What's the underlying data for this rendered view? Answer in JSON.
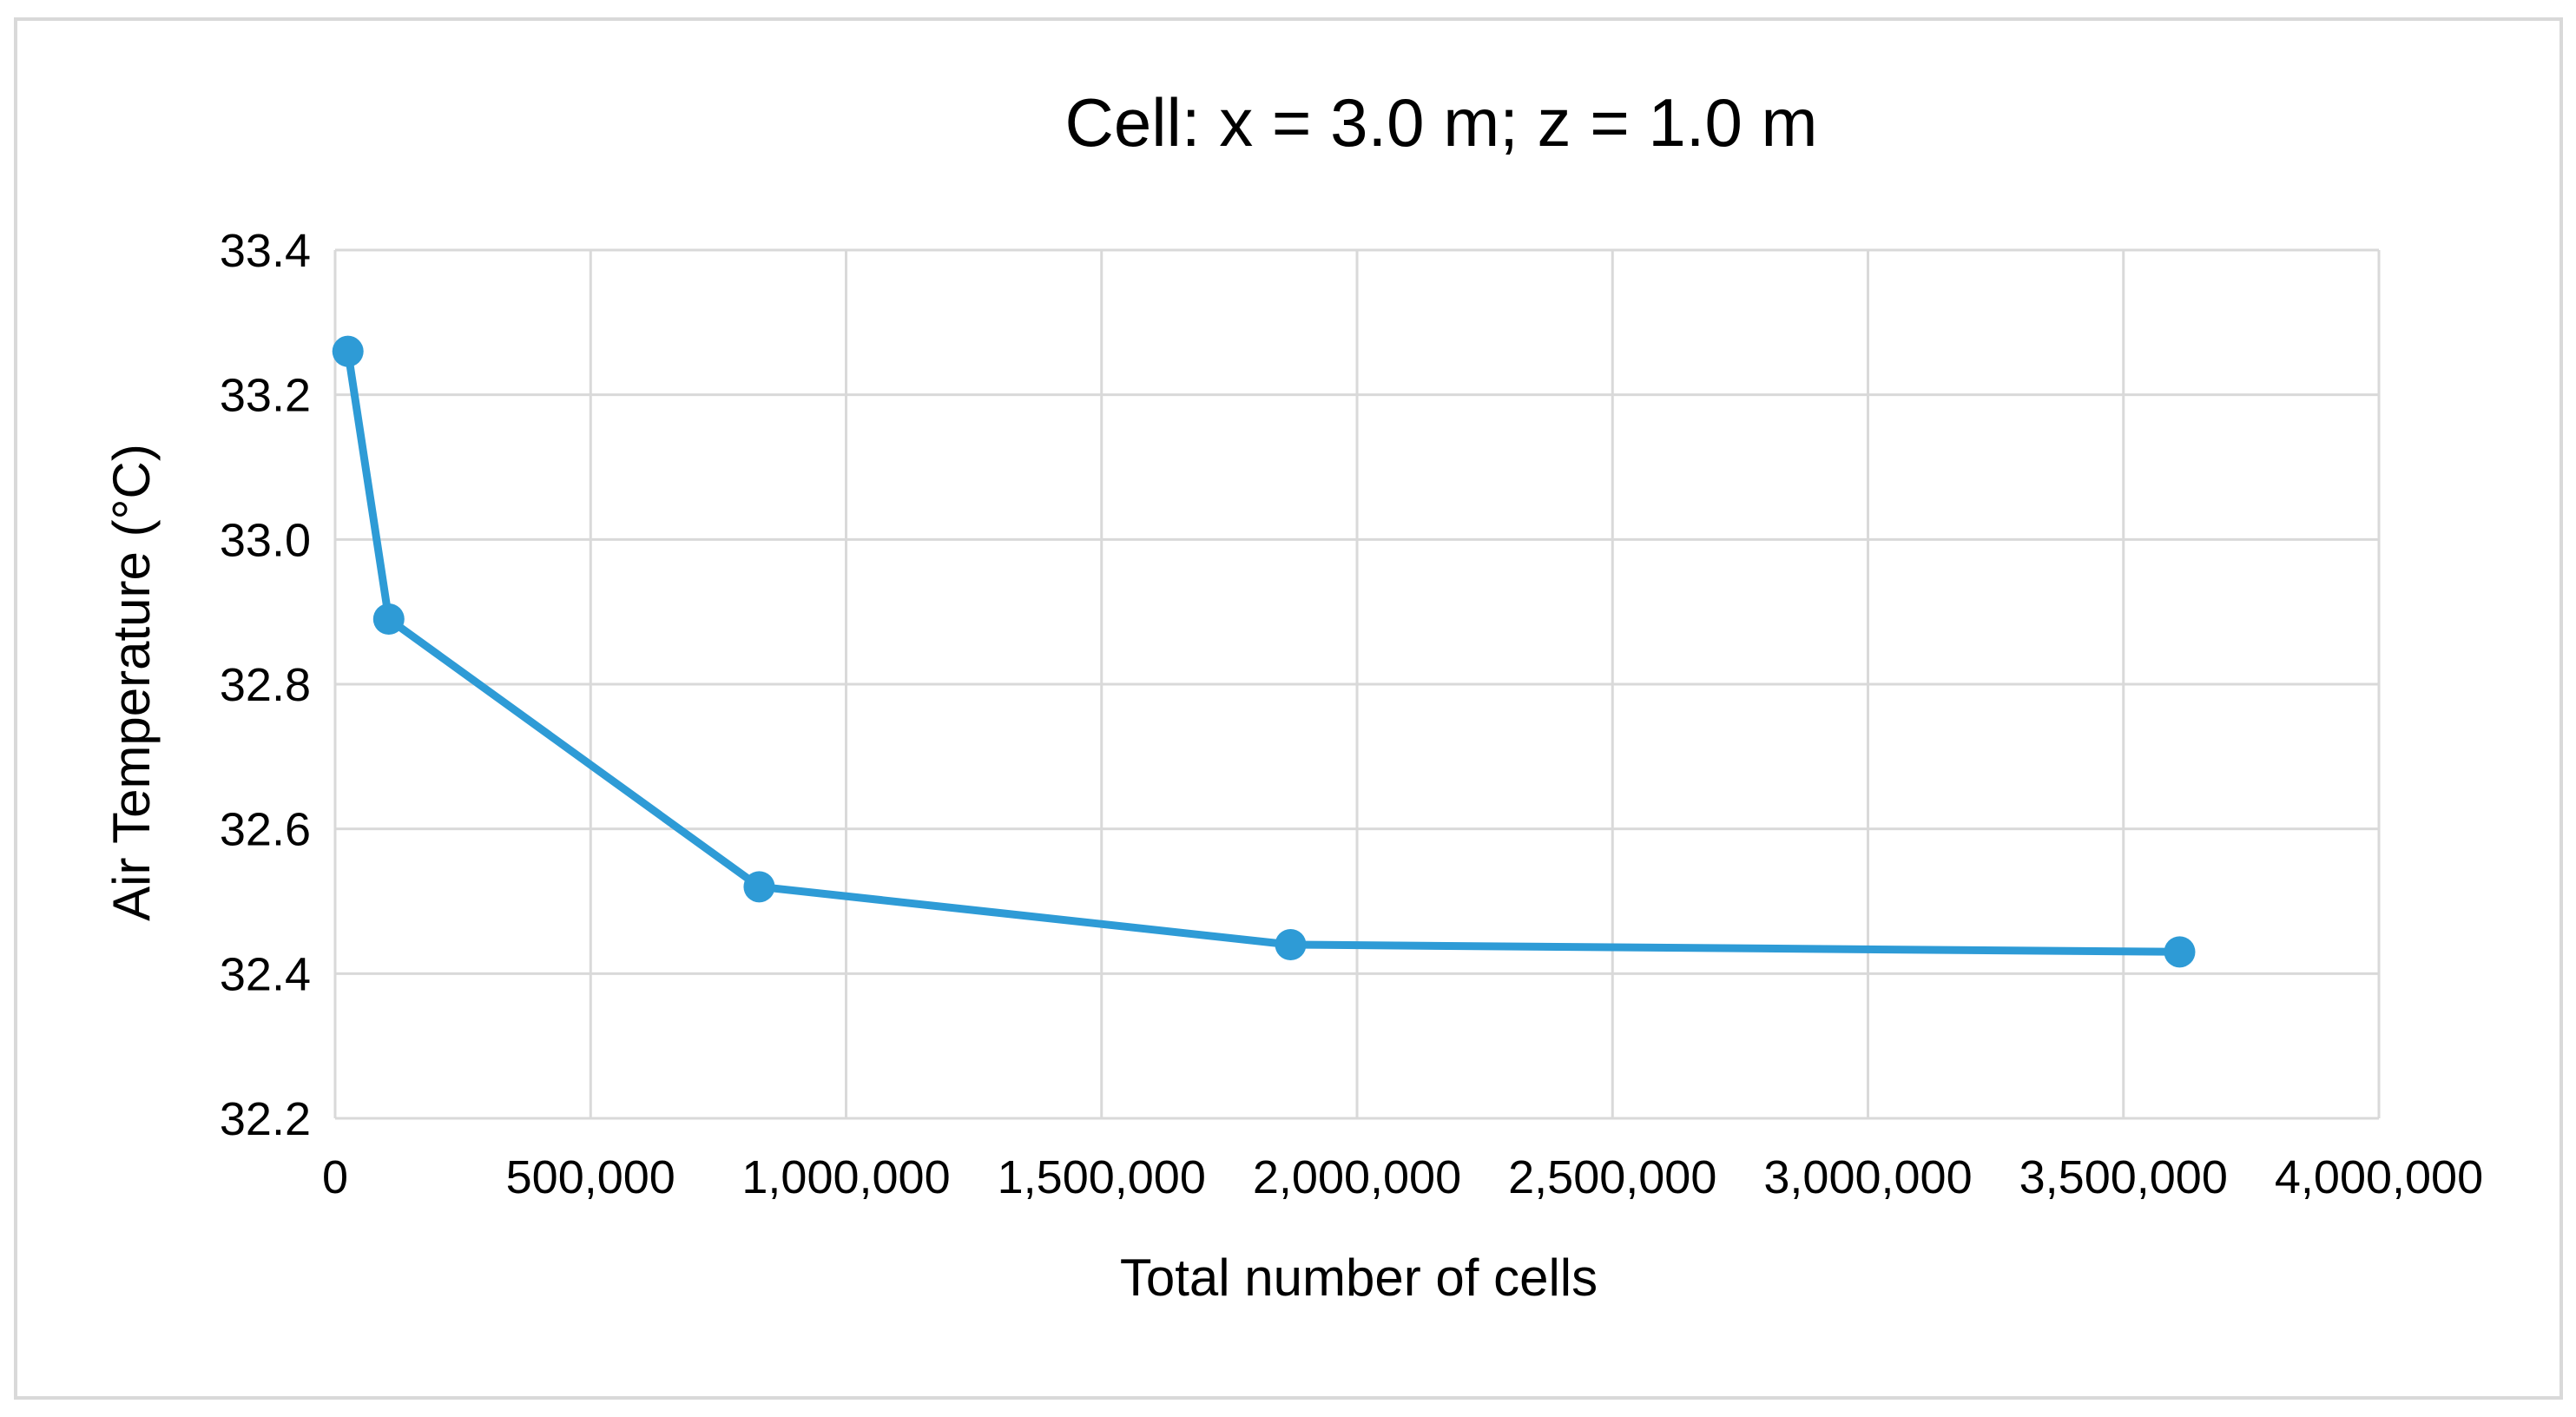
{
  "chart_data": {
    "type": "line",
    "title": "Cell: x = 3.0 m; z = 1.0 m",
    "xlabel": "Total number of cells",
    "ylabel": "Air Temperature (°C)",
    "xlim": [
      0,
      4000000
    ],
    "ylim": [
      32.2,
      33.4
    ],
    "xticks": [
      0,
      500000,
      1000000,
      1500000,
      2000000,
      2500000,
      3000000,
      3500000,
      4000000
    ],
    "xtick_labels": [
      "0",
      "500,000",
      "1,000,000",
      "1,500,000",
      "2,000,000",
      "2,500,000",
      "3,000,000",
      "3,500,000",
      "4,000,000"
    ],
    "yticks": [
      32.2,
      32.4,
      32.6,
      32.8,
      33.0,
      33.2,
      33.4
    ],
    "ytick_labels": [
      "32.2",
      "32.4",
      "32.6",
      "32.8",
      "33.0",
      "33.2",
      "33.4"
    ],
    "grid": true,
    "series": [
      {
        "name": "Air Temperature",
        "color": "#2E9BD6",
        "x": [
          25000,
          105000,
          830000,
          1870000,
          3610000
        ],
        "y": [
          33.26,
          32.89,
          32.52,
          32.44,
          32.43
        ]
      }
    ]
  }
}
